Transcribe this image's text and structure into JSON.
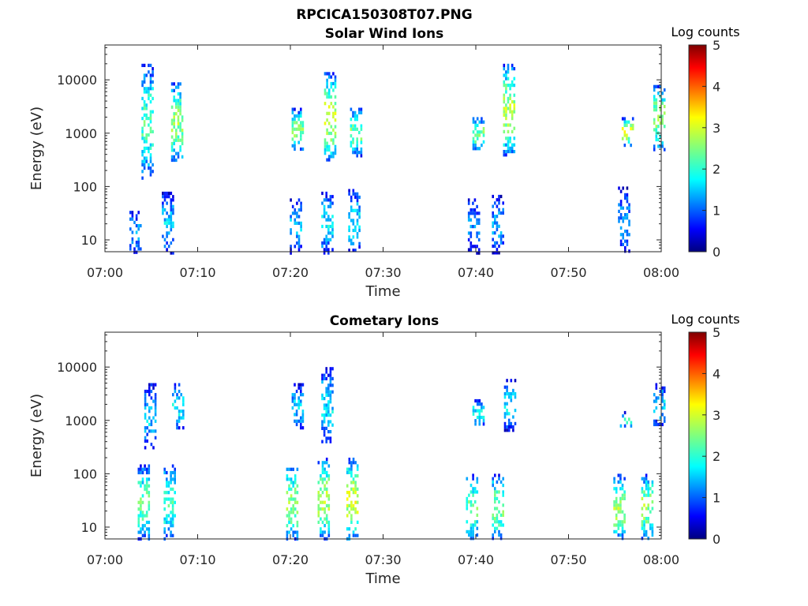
{
  "figure": {
    "title": "RPCICA150308T07.PNG"
  },
  "chart_data": [
    {
      "type": "heatmap",
      "title": "Solar Wind Ions",
      "xlabel": "Time",
      "ylabel": "Energy (eV)",
      "xticks": [
        "07:00",
        "07:10",
        "07:20",
        "07:30",
        "07:40",
        "07:50",
        "08:00"
      ],
      "xlim_minutes": [
        0,
        60
      ],
      "yticks": [
        "10",
        "100",
        "1000",
        "10000"
      ],
      "ylim_eV": [
        6,
        45000
      ],
      "yscale": "log",
      "colorbar": {
        "label": "Log counts",
        "ticks": [
          "0",
          "1",
          "2",
          "3",
          "4",
          "5"
        ],
        "range": [
          0,
          5
        ],
        "colormap": "jet"
      },
      "bursts": [
        {
          "minute": 3.3,
          "emin": 6,
          "emax": 35,
          "level": 1.4,
          "label": "low-energy"
        },
        {
          "minute": 4.6,
          "emin": 150,
          "emax": 20000,
          "level": 2.2,
          "label": "peak ~1000 eV"
        },
        {
          "minute": 6.8,
          "emin": 6,
          "emax": 80,
          "level": 1.6,
          "label": "low-energy"
        },
        {
          "minute": 7.8,
          "emin": 300,
          "emax": 9000,
          "level": 2.6,
          "label": "peak ~1000 eV"
        },
        {
          "minute": 20.6,
          "emin": 6,
          "emax": 60,
          "level": 1.5,
          "label": "low-energy"
        },
        {
          "minute": 20.8,
          "emin": 500,
          "emax": 3000,
          "level": 2.5,
          "label": "peak ~1000 eV"
        },
        {
          "minute": 24.0,
          "emin": 6,
          "emax": 80,
          "level": 1.8,
          "label": "low-energy"
        },
        {
          "minute": 24.3,
          "emin": 300,
          "emax": 14000,
          "level": 2.8,
          "label": "peak ~1000 eV"
        },
        {
          "minute": 26.9,
          "emin": 6,
          "emax": 90,
          "level": 1.7,
          "label": "low-energy"
        },
        {
          "minute": 27.1,
          "emin": 400,
          "emax": 3000,
          "level": 2.4,
          "label": "peak ~1000 eV"
        },
        {
          "minute": 39.8,
          "emin": 6,
          "emax": 60,
          "level": 1.2,
          "label": "low-energy"
        },
        {
          "minute": 40.3,
          "emin": 500,
          "emax": 2000,
          "level": 2.5,
          "label": "peak ~1000 eV"
        },
        {
          "minute": 42.4,
          "emin": 6,
          "emax": 70,
          "level": 1.4,
          "label": "low-energy"
        },
        {
          "minute": 43.6,
          "emin": 400,
          "emax": 20000,
          "level": 2.7,
          "label": "peak ~1000 eV"
        },
        {
          "minute": 56.0,
          "emin": 6,
          "emax": 100,
          "level": 1.3,
          "label": "low-energy"
        },
        {
          "minute": 56.4,
          "emin": 600,
          "emax": 2000,
          "level": 2.9,
          "label": "peak ~1000 eV"
        },
        {
          "minute": 59.8,
          "emin": 500,
          "emax": 8000,
          "level": 2.6,
          "label": "peak ~1000 eV"
        }
      ]
    },
    {
      "type": "heatmap",
      "title": "Cometary Ions",
      "xlabel": "Time",
      "ylabel": "Energy (eV)",
      "xticks": [
        "07:00",
        "07:10",
        "07:20",
        "07:30",
        "07:40",
        "07:50",
        "08:00"
      ],
      "xlim_minutes": [
        0,
        60
      ],
      "yticks": [
        "10",
        "100",
        "1000",
        "10000"
      ],
      "ylim_eV": [
        6,
        45000
      ],
      "yscale": "log",
      "colorbar": {
        "label": "Log counts",
        "ticks": [
          "0",
          "1",
          "2",
          "3",
          "4",
          "5"
        ],
        "range": [
          0,
          5
        ],
        "colormap": "jet"
      },
      "bursts": [
        {
          "minute": 4.2,
          "emin": 6,
          "emax": 150,
          "level": 2.4,
          "label": "low-energy"
        },
        {
          "minute": 4.9,
          "emin": 300,
          "emax": 5000,
          "level": 1.6,
          "label": "peak ~1000 eV"
        },
        {
          "minute": 7.0,
          "emin": 6,
          "emax": 150,
          "level": 2.2,
          "label": "low-energy"
        },
        {
          "minute": 7.9,
          "emin": 700,
          "emax": 5000,
          "level": 1.8,
          "label": "peak ~1000 eV"
        },
        {
          "minute": 20.2,
          "emin": 6,
          "emax": 150,
          "level": 2.6,
          "label": "low-energy"
        },
        {
          "minute": 20.8,
          "emin": 700,
          "emax": 5000,
          "level": 1.6,
          "label": "peak ~1000 eV"
        },
        {
          "minute": 23.6,
          "emin": 6,
          "emax": 200,
          "level": 2.8,
          "label": "low-energy"
        },
        {
          "minute": 24.0,
          "emin": 400,
          "emax": 10000,
          "level": 1.7,
          "label": "peak ~1000 eV"
        },
        {
          "minute": 26.7,
          "emin": 6,
          "emax": 200,
          "level": 2.9,
          "label": "low-energy"
        },
        {
          "minute": 39.6,
          "emin": 6,
          "emax": 100,
          "level": 2.3,
          "label": "low-energy"
        },
        {
          "minute": 40.3,
          "emin": 800,
          "emax": 2500,
          "level": 1.9,
          "label": "peak ~1000 eV"
        },
        {
          "minute": 42.4,
          "emin": 6,
          "emax": 100,
          "level": 2.5,
          "label": "low-energy"
        },
        {
          "minute": 43.7,
          "emin": 700,
          "emax": 6000,
          "level": 1.8,
          "label": "peak ~1000 eV"
        },
        {
          "minute": 55.5,
          "emin": 6,
          "emax": 100,
          "level": 2.7,
          "label": "low-energy"
        },
        {
          "minute": 56.2,
          "emin": 800,
          "emax": 1500,
          "level": 2.2,
          "label": "peak ~1000 eV"
        },
        {
          "minute": 58.5,
          "emin": 6,
          "emax": 100,
          "level": 2.6,
          "label": "low-energy"
        },
        {
          "minute": 59.8,
          "emin": 800,
          "emax": 5000,
          "level": 1.7,
          "label": "peak ~1000 eV"
        }
      ]
    }
  ]
}
